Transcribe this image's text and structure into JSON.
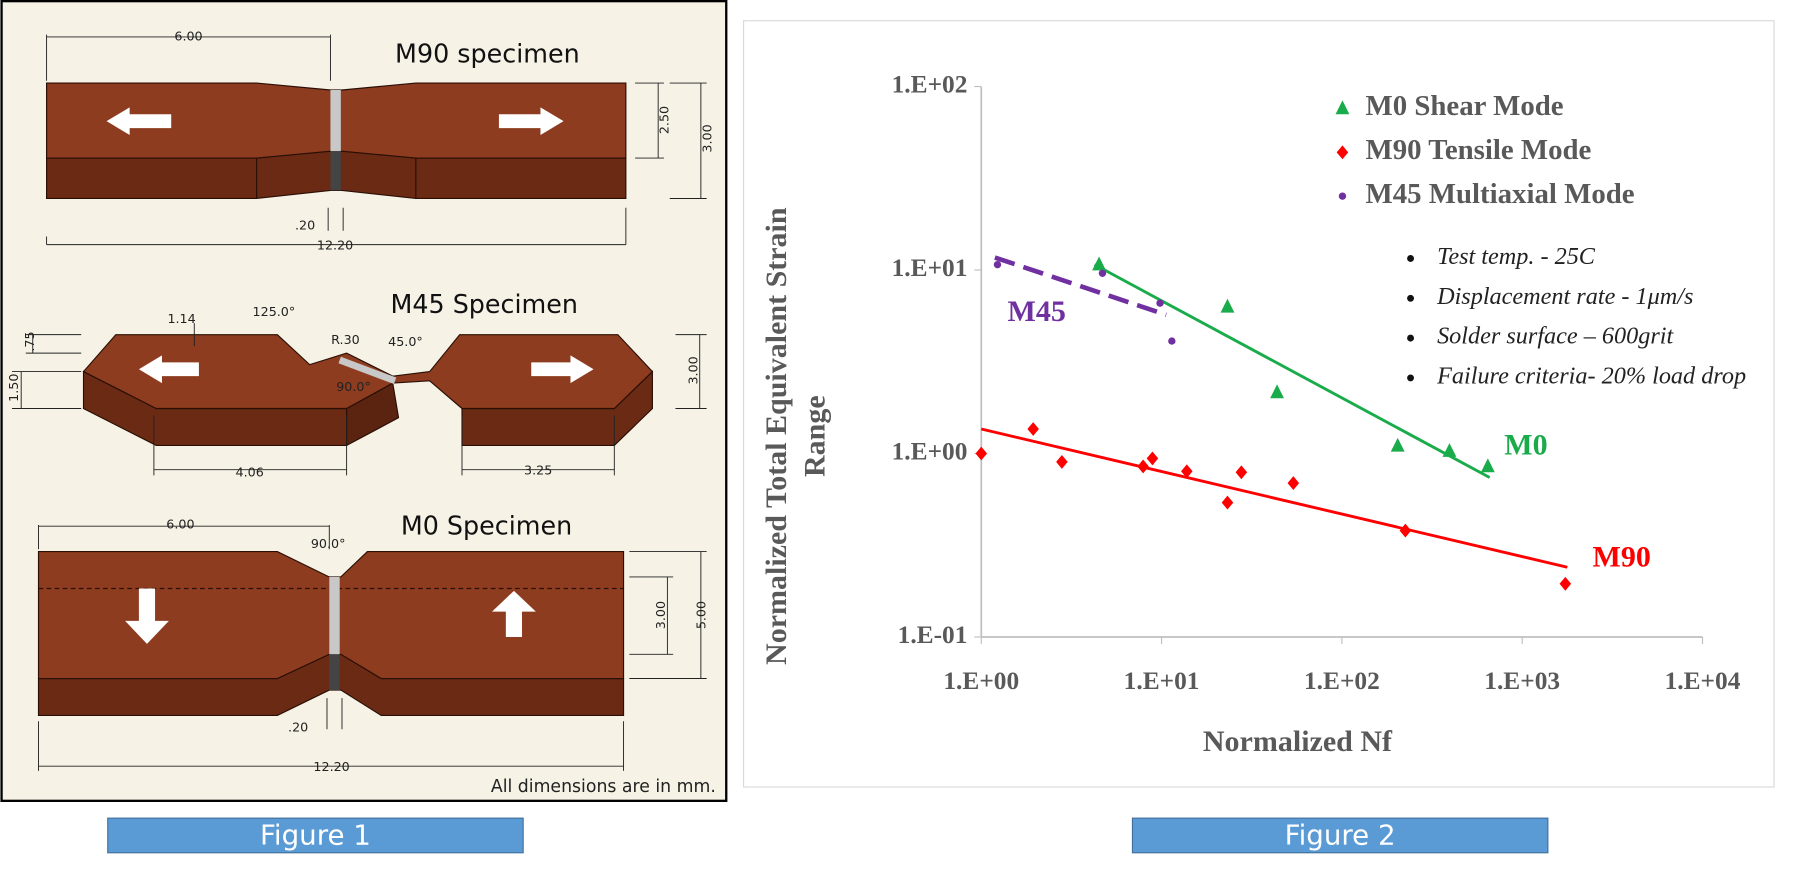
{
  "figure1": {
    "titles": [
      "M90 specimen",
      "M45 Specimen",
      "M0 Specimen"
    ],
    "m90_dims": [
      "6.00",
      "2.50",
      "3.00",
      ".20",
      "12.20"
    ],
    "m45_dims": [
      "1.14",
      "125.0°",
      "R.30",
      "45.0°",
      "90.0°",
      ".75",
      "1.50",
      "3.00",
      "4.06",
      "3.25"
    ],
    "m0_dims": [
      "6.00",
      "90.0°",
      "3.00",
      "5.00",
      ".20",
      "12.20"
    ],
    "note": "All dimensions are in mm.",
    "caption": "Figure 1"
  },
  "chart_data": {
    "type": "scatter",
    "xlabel": "Normalized Nf",
    "ylabel": [
      "Normalized Total Equivalent Strain",
      "Range"
    ],
    "log_x": true,
    "log_y": true,
    "xlim": [
      1,
      10000
    ],
    "ylim": [
      0.1,
      100
    ],
    "xticks": [
      {
        "value": 1,
        "label": "1.E+00"
      },
      {
        "value": 10,
        "label": "1.E+01"
      },
      {
        "value": 100,
        "label": "1.E+02"
      },
      {
        "value": 1000,
        "label": "1.E+03"
      },
      {
        "value": 10000,
        "label": "1.E+04"
      }
    ],
    "yticks": [
      {
        "value": 0.1,
        "label": "1.E-01"
      },
      {
        "value": 1,
        "label": "1.E+00"
      },
      {
        "value": 10,
        "label": "1.E+01"
      },
      {
        "value": 100,
        "label": "1.E+02"
      }
    ],
    "series": [
      {
        "name": "M0 Shear Mode",
        "color": "#1aab4b",
        "marker": "triangle",
        "x": [
          4.5,
          23.2,
          43.7,
          204,
          395,
          645
        ],
        "values": [
          10.7,
          6.3,
          2.15,
          1.1,
          1.03,
          0.85
        ]
      },
      {
        "name": "M90 Tensile Mode",
        "color": "#ff0000",
        "marker": "diamond",
        "x": [
          1,
          1.94,
          2.8,
          7.9,
          8.9,
          13.8,
          23.2,
          27.7,
          53.8,
          225,
          1735
        ],
        "values": [
          1.0,
          1.36,
          0.9,
          0.85,
          0.94,
          0.8,
          0.54,
          0.79,
          0.69,
          0.38,
          0.195
        ]
      },
      {
        "name": "M45 Multiaxial Mode",
        "color": "#7030a0",
        "marker": "dot",
        "x": [
          1.23,
          4.7,
          9.8,
          11.4
        ],
        "values": [
          10.7,
          9.6,
          6.6,
          4.1
        ]
      }
    ],
    "trend_lines": [
      {
        "label": "M0",
        "color": "#1aab4b",
        "dashed": false,
        "x": [
          4.25,
          660
        ],
        "values": [
          10.7,
          0.74
        ]
      },
      {
        "label": "M90",
        "color": "#ff0000",
        "dashed": false,
        "x": [
          1,
          1780
        ],
        "values": [
          1.36,
          0.24
        ]
      },
      {
        "label": "M45",
        "color": "#7030a0",
        "dashed": true,
        "x": [
          1.19,
          10.6
        ],
        "values": [
          11.7,
          5.7
        ]
      }
    ],
    "notes": [
      "Test temp. - 25C",
      "Displacement rate - 1μm/s",
      "Solder surface – 600grit",
      "Failure criteria- 20% load drop"
    ],
    "caption": "Figure 2"
  }
}
